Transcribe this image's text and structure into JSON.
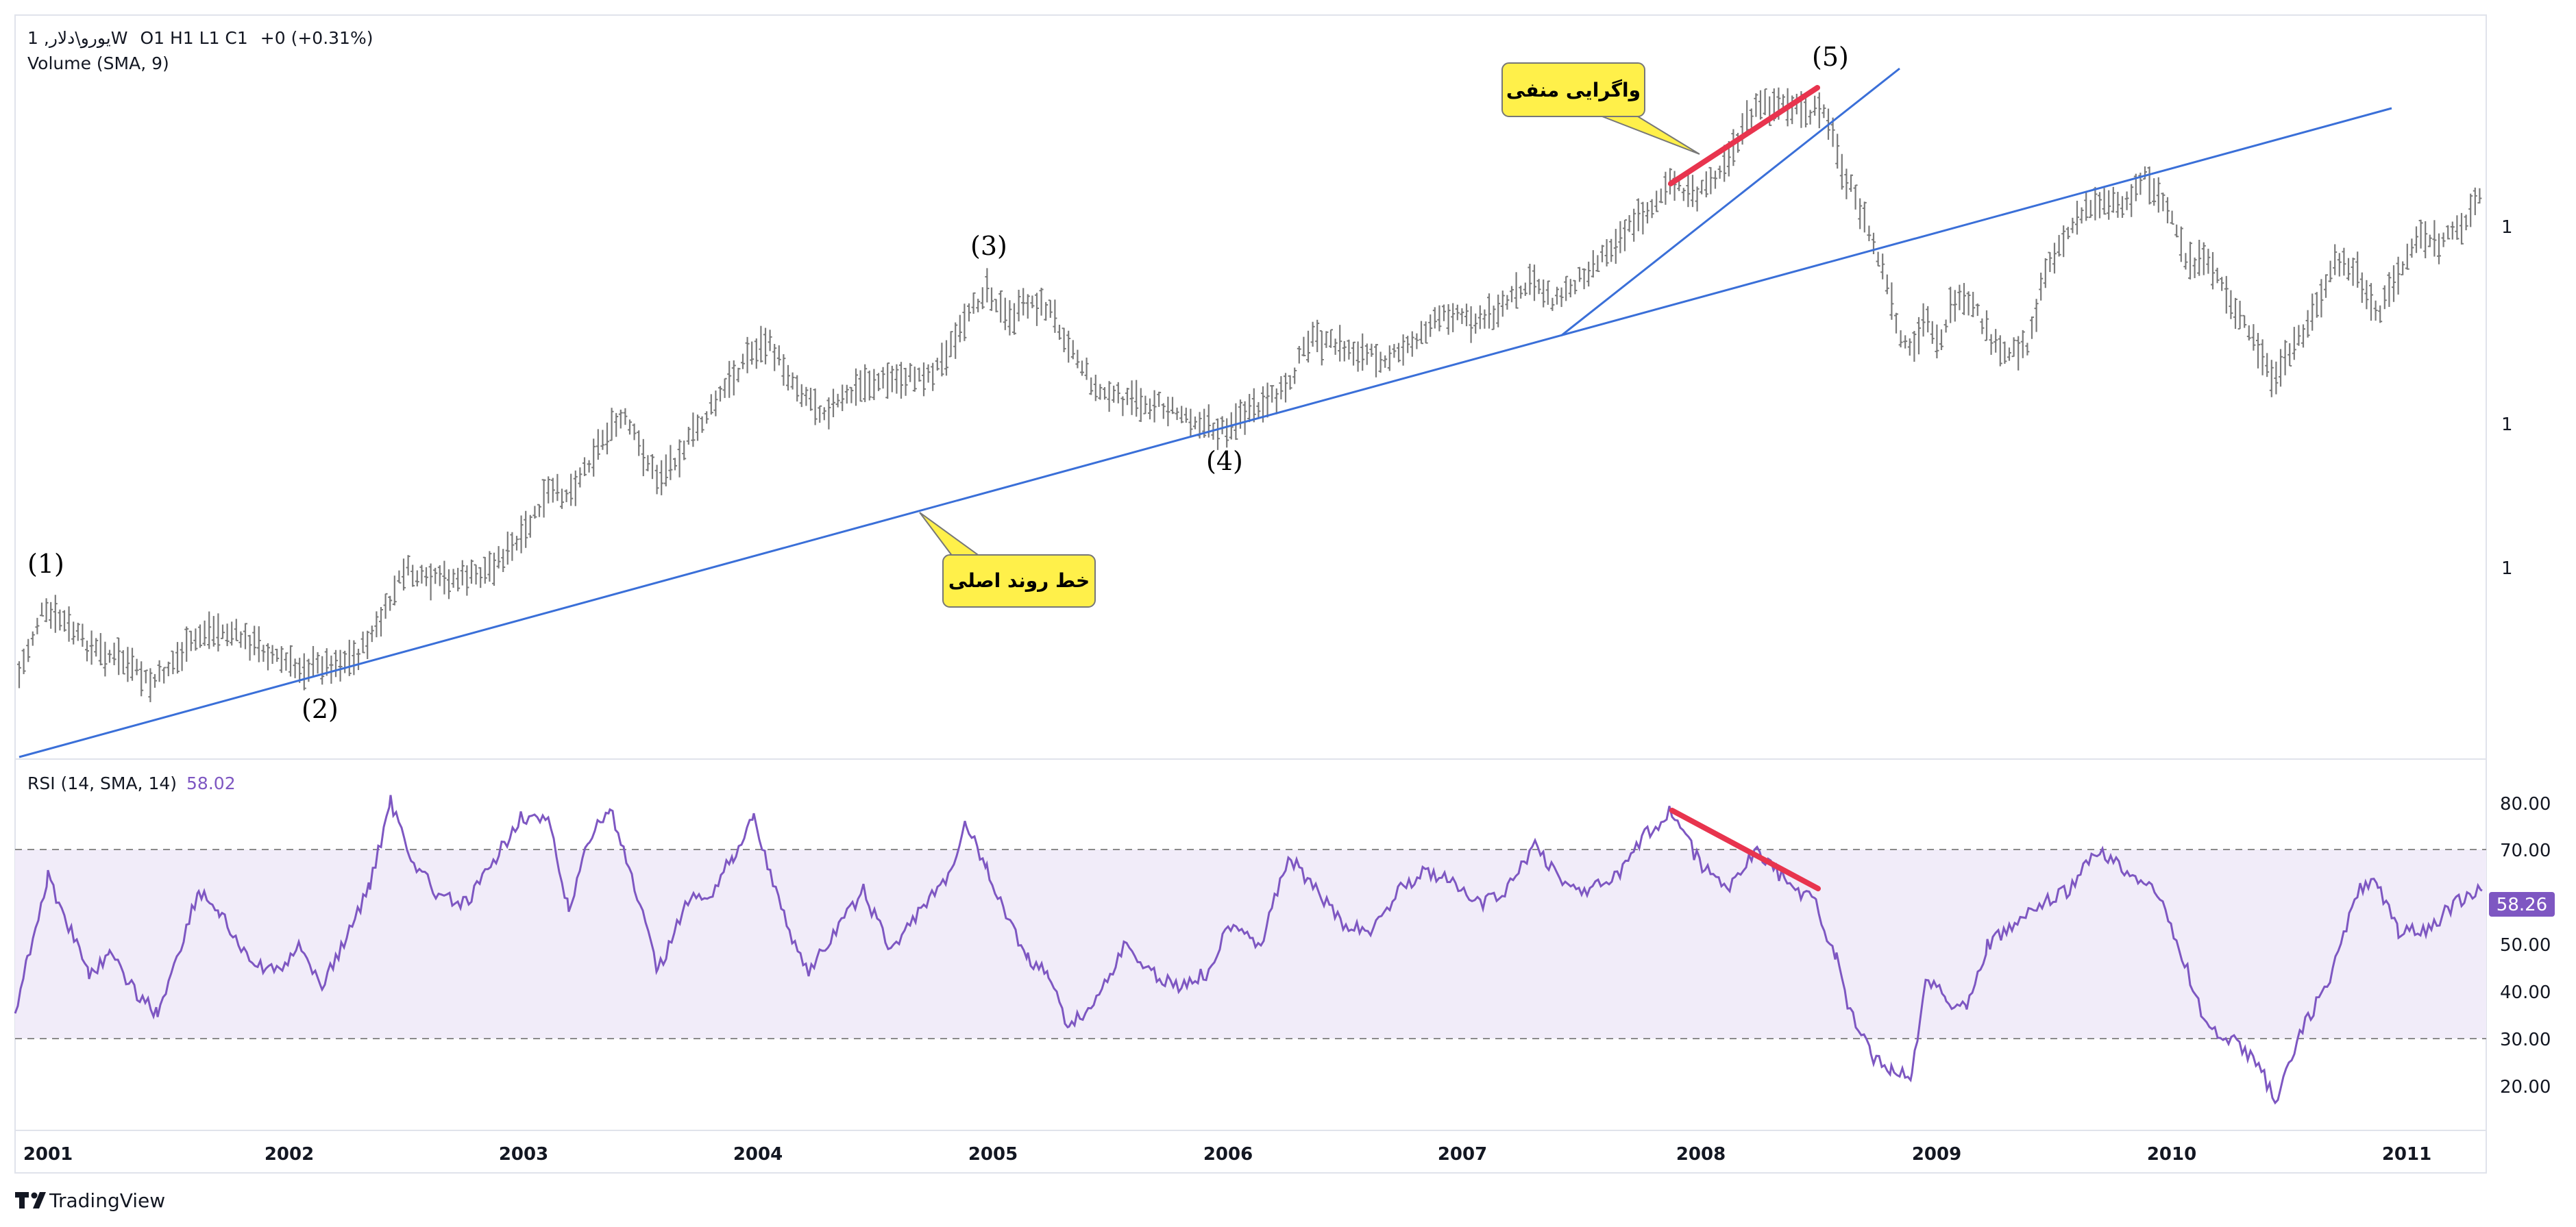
{
  "header": {
    "symbol": "1 ,یورو\\دلارW",
    "ohlc": "O1  H1  L1  C1",
    "change": "+0 (+0.31%)",
    "volume_label": "Volume (SMA, 9)"
  },
  "price_axis": {
    "labels": [
      "1",
      "1",
      "1"
    ]
  },
  "wave_labels": [
    "(1)",
    "(2)",
    "(3)",
    "(4)",
    "(5)"
  ],
  "annotations": {
    "main_trendline": "خط روند اصلی",
    "negative_divergence": "واگرایی منفی"
  },
  "rsi": {
    "label": "RSI (14, SMA, 14)",
    "value": "58.02",
    "current_badge": "58.26",
    "axis_labels": [
      "80.00",
      "70.00",
      "50.00",
      "40.00",
      "30.00",
      "20.00"
    ],
    "overbought": 70,
    "oversold": 30
  },
  "time_axis": {
    "years": [
      "2001",
      "2002",
      "2003",
      "2004",
      "2005",
      "2006",
      "2007",
      "2008",
      "2009",
      "2010",
      "2011"
    ]
  },
  "branding": {
    "logo_text": "TradingView"
  },
  "colors": {
    "trendline": "#3a6fd8",
    "divergence": "#e8344e",
    "rsi_line": "#7e57c2",
    "rsi_band": "#f1ecf9",
    "callout_fill": "#fff04a",
    "bar": "#7a7a7a"
  },
  "chart_data": [
    {
      "type": "bar",
      "subtype": "ohlc-weekly",
      "x_range": [
        "2001",
        "2011"
      ],
      "swing_points": [
        {
          "label": "(1)",
          "date": "2001-04"
        },
        {
          "label": "(2)",
          "date": "2002-02"
        },
        {
          "label": "(3)",
          "date": "2004-12"
        },
        {
          "label": "(4)",
          "date": "2005-12"
        },
        {
          "label": "(5)",
          "date": "2008-07"
        }
      ]
    },
    {
      "type": "line",
      "title": "RSI (14, SMA, 14)",
      "ylim": [
        15,
        85
      ],
      "levels": [
        30,
        70
      ],
      "last_value": 58.26,
      "x": [
        "2001",
        "2002",
        "2003",
        "2004",
        "2005",
        "2006",
        "2007",
        "2008",
        "2009",
        "2010",
        "2011"
      ]
    }
  ]
}
